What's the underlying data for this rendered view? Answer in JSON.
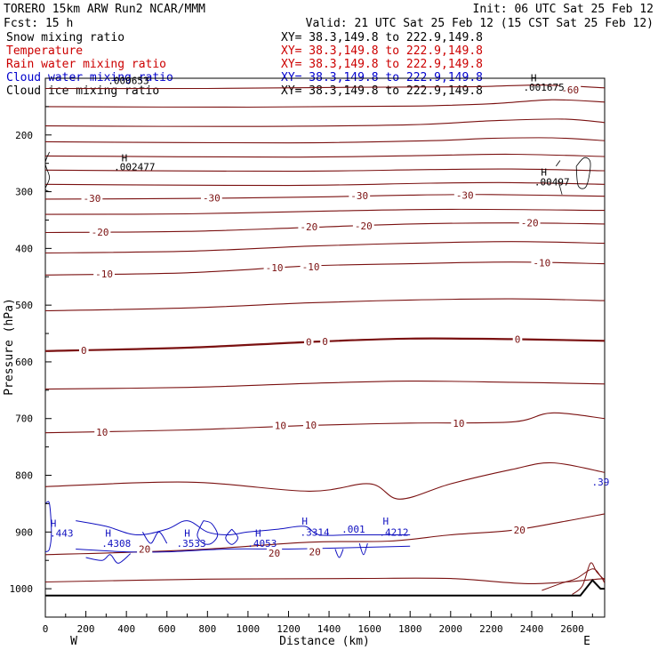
{
  "header": {
    "left_line1": "TORERO  15km ARW   Run2   NCAR/MMM",
    "left_line2": "Fcst:    15 h",
    "right_line1": "Init: 06 UTC Sat 25 Feb 12",
    "right_line2": "Valid: 21 UTC Sat 25 Feb 12 (15 CST Sat 25 Feb 12)"
  },
  "legend": [
    {
      "label": "Snow mixing ratio",
      "xy": "XY=  38.3,149.8 to 222.9,149.8",
      "color": "#000000",
      "xy_color": "#000000"
    },
    {
      "label": "Temperature",
      "xy": "XY=  38.3,149.8 to 222.9,149.8",
      "color": "#cc0000",
      "xy_color": "#cc0000"
    },
    {
      "label": "Rain water mixing ratio",
      "xy": "XY=  38.3,149.8 to 222.9,149.8",
      "color": "#cc0000",
      "xy_color": "#cc0000"
    },
    {
      "label": "Cloud water mixing ratio",
      "xy": "XY=  38.3,149.8 to 222.9,149.8",
      "color": "#0000cc",
      "xy_color": "#0000cc"
    },
    {
      "label": "Cloud ice mixing ratio",
      "xy": "XY=  38.3,149.8 to 222.9,149.8",
      "color": "#000000",
      "xy_color": "#000000"
    }
  ],
  "chart_data": {
    "type": "contour",
    "xlabel": "Distance (km)",
    "ylabel": "Pressure (hPa)",
    "xlim": [
      0,
      2760
    ],
    "ylim": [
      1050,
      100
    ],
    "x_ticks": [
      0,
      200,
      400,
      600,
      800,
      1000,
      1200,
      1400,
      1600,
      1800,
      2000,
      2200,
      2400,
      2600
    ],
    "y_ticks": [
      200,
      300,
      400,
      500,
      600,
      700,
      800,
      900,
      1000
    ],
    "left_end_label": "W",
    "right_end_label": "E",
    "colors": {
      "temp": "#7a1010",
      "cloud": "#1010c0",
      "ground": "#000000",
      "axis": "#000000"
    },
    "temperature_contours": [
      {
        "level": "-60",
        "pts": [
          [
            0,
            118
          ],
          [
            800,
            118
          ],
          [
            1500,
            116
          ],
          [
            2100,
            115
          ],
          [
            2450,
            112
          ],
          [
            2760,
            117
          ]
        ]
      },
      {
        "level": "",
        "pts": [
          [
            0,
            150
          ],
          [
            1000,
            151
          ],
          [
            1800,
            149
          ],
          [
            2200,
            145
          ],
          [
            2500,
            138
          ],
          [
            2760,
            142
          ]
        ]
      },
      {
        "level": "",
        "pts": [
          [
            0,
            184
          ],
          [
            1000,
            185
          ],
          [
            1800,
            182
          ],
          [
            2200,
            175
          ],
          [
            2550,
            172
          ],
          [
            2760,
            178
          ]
        ]
      },
      {
        "level": "",
        "pts": [
          [
            0,
            212
          ],
          [
            1200,
            214
          ],
          [
            1900,
            210
          ],
          [
            2200,
            206
          ],
          [
            2500,
            205
          ],
          [
            2760,
            210
          ]
        ]
      },
      {
        "level": "",
        "pts": [
          [
            0,
            237
          ],
          [
            1200,
            239
          ],
          [
            1900,
            236
          ],
          [
            2300,
            234
          ],
          [
            2760,
            238
          ]
        ]
      },
      {
        "level": "",
        "pts": [
          [
            0,
            262
          ],
          [
            1200,
            264
          ],
          [
            1900,
            261
          ],
          [
            2300,
            260
          ],
          [
            2760,
            263
          ]
        ]
      },
      {
        "level": "",
        "pts": [
          [
            0,
            287
          ],
          [
            1200,
            289
          ],
          [
            1900,
            285
          ],
          [
            2300,
            284
          ],
          [
            2760,
            287
          ]
        ]
      },
      {
        "level": "-30",
        "pts": [
          [
            0,
            313
          ],
          [
            700,
            312
          ],
          [
            1400,
            309
          ],
          [
            1800,
            306
          ],
          [
            2200,
            305
          ],
          [
            2760,
            308
          ]
        ]
      },
      {
        "level": "",
        "pts": [
          [
            0,
            340
          ],
          [
            700,
            339
          ],
          [
            1400,
            334
          ],
          [
            2000,
            331
          ],
          [
            2760,
            333
          ]
        ]
      },
      {
        "level": "-20",
        "pts": [
          [
            0,
            372
          ],
          [
            700,
            370
          ],
          [
            1300,
            363
          ],
          [
            1800,
            357
          ],
          [
            2300,
            355
          ],
          [
            2760,
            357
          ]
        ]
      },
      {
        "level": "",
        "pts": [
          [
            0,
            408
          ],
          [
            700,
            405
          ],
          [
            1300,
            396
          ],
          [
            1800,
            391
          ],
          [
            2300,
            388
          ],
          [
            2760,
            391
          ]
        ]
      },
      {
        "level": "-10",
        "pts": [
          [
            0,
            447
          ],
          [
            700,
            443
          ],
          [
            1300,
            431
          ],
          [
            1800,
            427
          ],
          [
            2300,
            424
          ],
          [
            2760,
            427
          ]
        ]
      },
      {
        "level": "",
        "pts": [
          [
            0,
            510
          ],
          [
            700,
            505
          ],
          [
            1300,
            496
          ],
          [
            1800,
            491
          ],
          [
            2300,
            489
          ],
          [
            2760,
            492
          ]
        ]
      },
      {
        "level": "0",
        "bold": true,
        "pts": [
          [
            0,
            581
          ],
          [
            700,
            575
          ],
          [
            1300,
            565
          ],
          [
            1800,
            559
          ],
          [
            2300,
            560
          ],
          [
            2760,
            563
          ]
        ]
      },
      {
        "level": "",
        "pts": [
          [
            0,
            648
          ],
          [
            700,
            645
          ],
          [
            1300,
            638
          ],
          [
            1800,
            634
          ],
          [
            2300,
            636
          ],
          [
            2760,
            639
          ]
        ]
      },
      {
        "level": "10",
        "pts": [
          [
            0,
            725
          ],
          [
            700,
            720
          ],
          [
            1300,
            712
          ],
          [
            1800,
            708
          ],
          [
            2300,
            706
          ],
          [
            2500,
            690
          ],
          [
            2760,
            700
          ]
        ]
      },
      {
        "level": "",
        "pts": [
          [
            0,
            820
          ],
          [
            700,
            812
          ],
          [
            1300,
            828
          ],
          [
            1600,
            815
          ],
          [
            1750,
            842
          ],
          [
            2000,
            815
          ],
          [
            2300,
            790
          ],
          [
            2500,
            778
          ],
          [
            2760,
            795
          ]
        ]
      },
      {
        "level": "20",
        "pts": [
          [
            0,
            940
          ],
          [
            700,
            932
          ],
          [
            1300,
            918
          ],
          [
            1700,
            916
          ],
          [
            2000,
            905
          ],
          [
            2300,
            897
          ],
          [
            2550,
            882
          ],
          [
            2760,
            868
          ]
        ]
      },
      {
        "level": "",
        "pts": [
          [
            0,
            988
          ],
          [
            800,
            983
          ],
          [
            1500,
            982
          ],
          [
            2000,
            982
          ],
          [
            2400,
            991
          ],
          [
            2760,
            982
          ]
        ]
      }
    ],
    "labels": [
      {
        "text": "-60",
        "x": 2590,
        "p": 120,
        "c": "temp"
      },
      {
        "text": "-30",
        "x": 230,
        "p": 312,
        "c": "temp"
      },
      {
        "text": "-30",
        "x": 820,
        "p": 311,
        "c": "temp"
      },
      {
        "text": "-30",
        "x": 1550,
        "p": 307,
        "c": "temp"
      },
      {
        "text": "-30",
        "x": 2070,
        "p": 306,
        "c": "temp"
      },
      {
        "text": "-20",
        "x": 270,
        "p": 371,
        "c": "temp"
      },
      {
        "text": "-20",
        "x": 1300,
        "p": 362,
        "c": "temp"
      },
      {
        "text": "-20",
        "x": 1570,
        "p": 360,
        "c": "temp"
      },
      {
        "text": "-20",
        "x": 2390,
        "p": 355,
        "c": "temp"
      },
      {
        "text": "-10",
        "x": 290,
        "p": 445,
        "c": "temp"
      },
      {
        "text": "-10",
        "x": 1130,
        "p": 434,
        "c": "temp"
      },
      {
        "text": "-10",
        "x": 1310,
        "p": 432,
        "c": "temp"
      },
      {
        "text": "-10",
        "x": 2450,
        "p": 425,
        "c": "temp"
      },
      {
        "text": "0",
        "x": 190,
        "p": 580,
        "c": "temp"
      },
      {
        "text": "0",
        "x": 1300,
        "p": 565,
        "c": "temp"
      },
      {
        "text": "0",
        "x": 1380,
        "p": 564,
        "c": "temp"
      },
      {
        "text": "0",
        "x": 2330,
        "p": 560,
        "c": "temp"
      },
      {
        "text": "10",
        "x": 280,
        "p": 724,
        "c": "temp"
      },
      {
        "text": "10",
        "x": 1160,
        "p": 712,
        "c": "temp"
      },
      {
        "text": "10",
        "x": 1310,
        "p": 711,
        "c": "temp"
      },
      {
        "text": "10",
        "x": 2040,
        "p": 708,
        "c": "temp"
      },
      {
        "text": "20",
        "x": 2340,
        "p": 896,
        "c": "temp"
      },
      {
        "text": "20",
        "x": 490,
        "p": 930,
        "c": "temp"
      },
      {
        "text": "20",
        "x": 1130,
        "p": 937,
        "c": "temp"
      },
      {
        "text": "20",
        "x": 1330,
        "p": 935,
        "c": "temp"
      },
      {
        "text": "H",
        "x": 390,
        "p": 240,
        "c": "axis"
      },
      {
        "text": ".002477",
        "x": 440,
        "p": 256,
        "c": "axis"
      },
      {
        "text": "H",
        "x": 2460,
        "p": 265,
        "c": "axis"
      },
      {
        "text": ".00497",
        "x": 2500,
        "p": 283,
        "c": "axis"
      },
      {
        "text": "H",
        "x": 2410,
        "p": 99,
        "c": "axis"
      },
      {
        "text": ".001675",
        "x": 2460,
        "p": 116,
        "c": "axis"
      },
      {
        "text": ".000653",
        "x": 410,
        "p": 104,
        "c": "axis"
      },
      {
        "text": "H",
        "x": 40,
        "p": 885,
        "c": "cloud"
      },
      {
        "text": ".443",
        "x": 80,
        "p": 902,
        "c": "cloud"
      },
      {
        "text": "H",
        "x": 310,
        "p": 902,
        "c": "cloud"
      },
      {
        "text": ".4308",
        "x": 350,
        "p": 920,
        "c": "cloud"
      },
      {
        "text": "H",
        "x": 700,
        "p": 902,
        "c": "cloud"
      },
      {
        "text": ".3533",
        "x": 720,
        "p": 920,
        "c": "cloud"
      },
      {
        "text": "H",
        "x": 1050,
        "p": 902,
        "c": "cloud"
      },
      {
        "text": ".4053",
        "x": 1070,
        "p": 920,
        "c": "cloud"
      },
      {
        "text": "H",
        "x": 1280,
        "p": 881,
        "c": "cloud"
      },
      {
        "text": ".3314",
        "x": 1330,
        "p": 900,
        "c": "cloud"
      },
      {
        "text": ".001",
        "x": 1520,
        "p": 895,
        "c": "cloud"
      },
      {
        "text": "H",
        "x": 1680,
        "p": 881,
        "c": "cloud"
      },
      {
        "text": ".4212",
        "x": 1720,
        "p": 900,
        "c": "cloud"
      },
      {
        "text": ".39",
        "x": 2740,
        "p": 812,
        "c": "cloud"
      }
    ],
    "cloud_water_contours": [
      [
        [
          0,
          850
        ],
        [
          20,
          850
        ],
        [
          30,
          900
        ],
        [
          20,
          930
        ],
        [
          0,
          935
        ]
      ],
      [
        [
          150,
          880
        ],
        [
          300,
          890
        ],
        [
          450,
          905
        ],
        [
          600,
          895
        ],
        [
          700,
          880
        ],
        [
          800,
          900
        ],
        [
          900,
          905
        ],
        [
          1000,
          900
        ],
        [
          1150,
          895
        ],
        [
          1280,
          890
        ],
        [
          1350,
          905
        ],
        [
          1500,
          905
        ],
        [
          1650,
          905
        ],
        [
          1800,
          905
        ]
      ],
      [
        [
          150,
          930
        ],
        [
          400,
          935
        ],
        [
          600,
          935
        ],
        [
          900,
          930
        ],
        [
          1200,
          930
        ],
        [
          1450,
          928
        ],
        [
          1800,
          925
        ]
      ],
      [
        [
          200,
          945
        ],
        [
          280,
          950
        ],
        [
          320,
          940
        ],
        [
          360,
          955
        ],
        [
          420,
          938
        ]
      ],
      [
        [
          480,
          900
        ],
        [
          520,
          920
        ],
        [
          560,
          900
        ],
        [
          600,
          920
        ]
      ],
      [
        [
          780,
          880
        ],
        [
          820,
          885
        ],
        [
          850,
          905
        ],
        [
          820,
          920
        ],
        [
          780,
          920
        ],
        [
          750,
          905
        ],
        [
          780,
          880
        ]
      ],
      [
        [
          920,
          895
        ],
        [
          950,
          910
        ],
        [
          920,
          922
        ],
        [
          890,
          910
        ],
        [
          920,
          895
        ]
      ],
      [
        [
          1430,
          930
        ],
        [
          1450,
          945
        ],
        [
          1470,
          930
        ]
      ],
      [
        [
          1550,
          920
        ],
        [
          1570,
          940
        ],
        [
          1590,
          920
        ]
      ]
    ],
    "cloud_ice_contours": [
      [
        [
          20,
          230
        ],
        [
          0,
          250
        ],
        [
          20,
          275
        ],
        [
          0,
          295
        ],
        [
          20,
          300
        ]
      ],
      [
        [
          2620,
          255
        ],
        [
          2660,
          240
        ],
        [
          2690,
          250
        ],
        [
          2670,
          290
        ],
        [
          2630,
          290
        ],
        [
          2620,
          255
        ]
      ],
      [
        [
          2530,
          280
        ],
        [
          2550,
          305
        ]
      ],
      [
        [
          2520,
          255
        ],
        [
          2540,
          245
        ]
      ]
    ],
    "ground": [
      [
        0,
        1012
      ],
      [
        800,
        1012
      ],
      [
        1600,
        1012
      ],
      [
        2200,
        1012
      ],
      [
        2640,
        1012
      ],
      [
        2700,
        985
      ],
      [
        2740,
        1000
      ],
      [
        2760,
        1000
      ]
    ],
    "right_terrain_temp": [
      [
        2450,
        1003
      ],
      [
        2550,
        990
      ],
      [
        2620,
        982
      ],
      [
        2700,
        965
      ],
      [
        2740,
        978
      ],
      [
        2760,
        990
      ]
    ],
    "right_terrain_temp2": [
      [
        2600,
        1010
      ],
      [
        2650,
        995
      ],
      [
        2690,
        955
      ],
      [
        2720,
        970
      ],
      [
        2760,
        985
      ]
    ]
  }
}
